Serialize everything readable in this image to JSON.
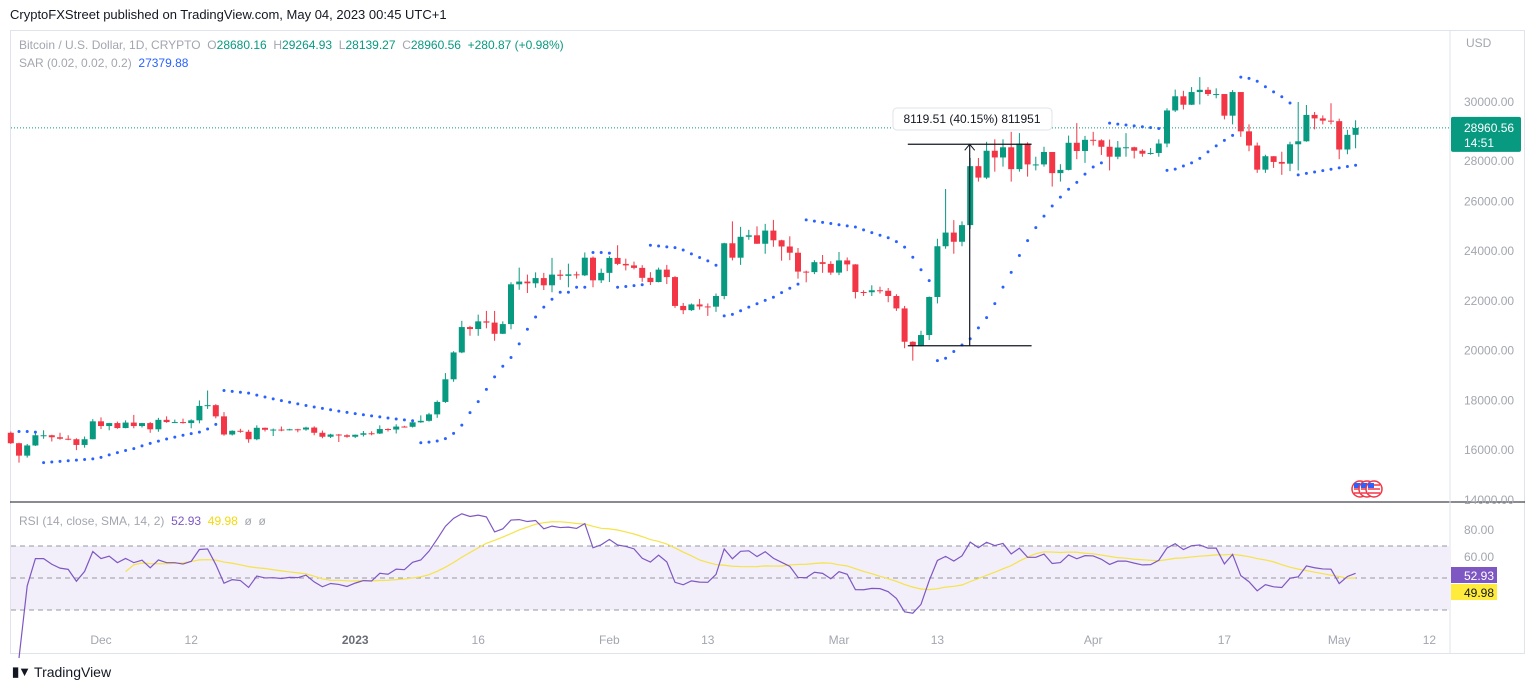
{
  "publisher_line": "CryptoFXStreet published on TradingView.com, May 04, 2023 00:45 UTC+1",
  "legend": {
    "symbol": "Bitcoin / U.S. Dollar, 1D, CRYPTO",
    "o_label": "O",
    "o": "28680.16",
    "h_label": "H",
    "h": "29264.93",
    "l_label": "L",
    "l": "28139.27",
    "c_label": "C",
    "c": "28960.56",
    "change": "+280.87 (+0.98%)",
    "sar_label": "SAR (0.02, 0.02, 0.2)",
    "sar_value": "27379.88"
  },
  "rsi_legend": {
    "label": "RSI (14, close, SMA, 14, 2)",
    "rsi": "52.93",
    "sma": "49.98",
    "extra1": "ø",
    "extra2": "ø"
  },
  "footer": {
    "brand": "TradingView"
  },
  "colors": {
    "up": "#089981",
    "down": "#f23645",
    "sar": "#2962ff",
    "rsi": "#7e57c2",
    "rsi_sma": "#f5e348",
    "band_fill": "#f2eefa"
  },
  "chart_data": {
    "type": "candlestick",
    "currency_label": "USD",
    "y_ticks": [
      "30000.00",
      "28000.00",
      "26000.00",
      "24000.00",
      "22000.00",
      "20000.00",
      "18000.00",
      "16000.00",
      "14000.00"
    ],
    "y_tick_values": [
      30000,
      28000,
      26000,
      24000,
      22000,
      20000,
      18000,
      16000,
      14000
    ],
    "ylim": [
      14000,
      31000
    ],
    "x_ticks": [
      {
        "date": "2022-12-01",
        "label": "Dec"
      },
      {
        "date": "2022-12-12",
        "label": "12"
      },
      {
        "date": "2023-01-01",
        "label": "2023",
        "bold": true
      },
      {
        "date": "2023-01-16",
        "label": "16"
      },
      {
        "date": "2023-02-01",
        "label": "Feb"
      },
      {
        "date": "2023-02-13",
        "label": "13"
      },
      {
        "date": "2023-03-01",
        "label": "Mar"
      },
      {
        "date": "2023-03-13",
        "label": "13"
      },
      {
        "date": "2023-04-01",
        "label": "Apr"
      },
      {
        "date": "2023-04-17",
        "label": "17"
      },
      {
        "date": "2023-05-01",
        "label": "May"
      },
      {
        "date": "2023-05-12",
        "label": "12"
      }
    ],
    "last_price": {
      "value": 28960.56,
      "label": "28960.56",
      "countdown": "14:51"
    },
    "measure": {
      "from": 20200,
      "to": 28300,
      "start_date": "2023-03-10",
      "end_date": "2023-03-24",
      "label": "8119.51 (40.15%) 811951"
    },
    "rsi": {
      "ylim": [
        20,
        90
      ],
      "ticks": [
        "80.00",
        "60.00"
      ],
      "tick_values": [
        80,
        60
      ],
      "bands": [
        70,
        50,
        30
      ],
      "last_rsi_label": "52.93",
      "last_sma_label": "49.98"
    },
    "candles": [
      [
        "2022-11-20",
        16700,
        16750,
        16250,
        16280
      ],
      [
        "2022-11-21",
        16280,
        16300,
        15500,
        15780
      ],
      [
        "2022-11-22",
        15780,
        16250,
        15700,
        16190
      ],
      [
        "2022-11-23",
        16190,
        16680,
        16170,
        16600
      ],
      [
        "2022-11-24",
        16600,
        16800,
        16460,
        16600
      ],
      [
        "2022-11-25",
        16600,
        16620,
        16350,
        16520
      ],
      [
        "2022-11-26",
        16520,
        16700,
        16420,
        16460
      ],
      [
        "2022-11-27",
        16460,
        16600,
        16400,
        16440
      ],
      [
        "2022-11-28",
        16440,
        16480,
        16000,
        16210
      ],
      [
        "2022-11-29",
        16210,
        16550,
        16100,
        16440
      ],
      [
        "2022-11-30",
        16440,
        17250,
        16430,
        17160
      ],
      [
        "2022-12-01",
        17160,
        17320,
        16850,
        16970
      ],
      [
        "2022-12-02",
        16970,
        17100,
        16800,
        17090
      ],
      [
        "2022-12-03",
        17090,
        17150,
        16860,
        16890
      ],
      [
        "2022-12-04",
        16890,
        17200,
        16880,
        17110
      ],
      [
        "2022-12-05",
        17110,
        17420,
        16880,
        16970
      ],
      [
        "2022-12-06",
        16970,
        17100,
        16910,
        17090
      ],
      [
        "2022-12-07",
        17090,
        17130,
        16700,
        16840
      ],
      [
        "2022-12-08",
        16840,
        17300,
        16740,
        17220
      ],
      [
        "2022-12-09",
        17220,
        17360,
        17100,
        17130
      ],
      [
        "2022-12-10",
        17130,
        17230,
        17090,
        17130
      ],
      [
        "2022-12-11",
        17130,
        17270,
        17070,
        17090
      ],
      [
        "2022-12-12",
        17090,
        17240,
        16880,
        17200
      ],
      [
        "2022-12-13",
        17200,
        18000,
        17080,
        17780
      ],
      [
        "2022-12-14",
        17780,
        18400,
        17660,
        17810
      ],
      [
        "2022-12-15",
        17810,
        17850,
        17280,
        17360
      ],
      [
        "2022-12-16",
        17360,
        17530,
        16580,
        16630
      ],
      [
        "2022-12-17",
        16630,
        16800,
        16590,
        16780
      ],
      [
        "2022-12-18",
        16780,
        16860,
        16700,
        16740
      ],
      [
        "2022-12-19",
        16740,
        16820,
        16300,
        16440
      ],
      [
        "2022-12-20",
        16440,
        17000,
        16400,
        16900
      ],
      [
        "2022-12-21",
        16900,
        16910,
        16750,
        16820
      ],
      [
        "2022-12-22",
        16820,
        16870,
        16570,
        16830
      ],
      [
        "2022-12-23",
        16830,
        16950,
        16760,
        16800
      ],
      [
        "2022-12-24",
        16800,
        16860,
        16790,
        16840
      ],
      [
        "2022-12-25",
        16840,
        16860,
        16720,
        16830
      ],
      [
        "2022-12-26",
        16830,
        16940,
        16780,
        16910
      ],
      [
        "2022-12-27",
        16910,
        16960,
        16600,
        16700
      ],
      [
        "2022-12-28",
        16700,
        16790,
        16480,
        16540
      ],
      [
        "2022-12-29",
        16540,
        16660,
        16490,
        16630
      ],
      [
        "2022-12-30",
        16630,
        16650,
        16330,
        16600
      ],
      [
        "2022-12-31",
        16600,
        16640,
        16500,
        16540
      ],
      [
        "2023-01-01",
        16540,
        16630,
        16490,
        16620
      ],
      [
        "2023-01-02",
        16620,
        16770,
        16550,
        16680
      ],
      [
        "2023-01-03",
        16680,
        16760,
        16600,
        16670
      ],
      [
        "2023-01-04",
        16670,
        17000,
        16650,
        16850
      ],
      [
        "2023-01-05",
        16850,
        16880,
        16750,
        16830
      ],
      [
        "2023-01-06",
        16830,
        17040,
        16670,
        16950
      ],
      [
        "2023-01-07",
        16950,
        16980,
        16910,
        16940
      ],
      [
        "2023-01-08",
        16940,
        17180,
        16910,
        17120
      ],
      [
        "2023-01-09",
        17120,
        17400,
        17100,
        17180
      ],
      [
        "2023-01-10",
        17180,
        17500,
        17150,
        17440
      ],
      [
        "2023-01-11",
        17440,
        18000,
        17300,
        17940
      ],
      [
        "2023-01-12",
        17940,
        19100,
        17900,
        18850
      ],
      [
        "2023-01-13",
        18850,
        19980,
        18750,
        19930
      ],
      [
        "2023-01-14",
        19930,
        21200,
        19900,
        20950
      ],
      [
        "2023-01-15",
        20950,
        21000,
        20600,
        20870
      ],
      [
        "2023-01-16",
        20870,
        21450,
        20600,
        21180
      ],
      [
        "2023-01-17",
        21180,
        21600,
        20900,
        21130
      ],
      [
        "2023-01-18",
        21130,
        21600,
        20400,
        20680
      ],
      [
        "2023-01-19",
        20680,
        21180,
        20670,
        21070
      ],
      [
        "2023-01-20",
        21070,
        22750,
        20860,
        22670
      ],
      [
        "2023-01-21",
        22670,
        23340,
        22450,
        22780
      ],
      [
        "2023-01-22",
        22780,
        23060,
        22320,
        22710
      ],
      [
        "2023-01-23",
        22710,
        23150,
        22530,
        22920
      ],
      [
        "2023-01-24",
        22920,
        23130,
        22440,
        22630
      ],
      [
        "2023-01-25",
        22630,
        23730,
        22350,
        23060
      ],
      [
        "2023-01-26",
        23060,
        23250,
        22850,
        23010
      ],
      [
        "2023-01-27",
        23010,
        23500,
        22550,
        23070
      ],
      [
        "2023-01-28",
        23070,
        23180,
        22900,
        23030
      ],
      [
        "2023-01-29",
        23030,
        23950,
        23000,
        23740
      ],
      [
        "2023-01-30",
        23740,
        23790,
        22550,
        22830
      ],
      [
        "2023-01-31",
        22830,
        23300,
        22720,
        23130
      ],
      [
        "2023-02-01",
        23130,
        23800,
        22760,
        23730
      ],
      [
        "2023-02-02",
        23730,
        24240,
        23440,
        23490
      ],
      [
        "2023-02-03",
        23490,
        23700,
        23230,
        23430
      ],
      [
        "2023-02-04",
        23430,
        23580,
        23270,
        23330
      ],
      [
        "2023-02-05",
        23330,
        23440,
        22770,
        22930
      ],
      [
        "2023-02-06",
        22930,
        23160,
        22640,
        22760
      ],
      [
        "2023-02-07",
        22760,
        23340,
        22750,
        23260
      ],
      [
        "2023-02-08",
        23260,
        23450,
        22680,
        22960
      ],
      [
        "2023-02-09",
        22960,
        23000,
        21720,
        21800
      ],
      [
        "2023-02-10",
        21800,
        21920,
        21470,
        21630
      ],
      [
        "2023-02-11",
        21630,
        21900,
        21600,
        21860
      ],
      [
        "2023-02-12",
        21860,
        22080,
        21650,
        21780
      ],
      [
        "2023-02-13",
        21780,
        21900,
        21400,
        21770
      ],
      [
        "2023-02-14",
        21770,
        22300,
        21560,
        22200
      ],
      [
        "2023-02-15",
        22200,
        24340,
        22070,
        24320
      ],
      [
        "2023-02-16",
        24320,
        25200,
        23630,
        23740
      ],
      [
        "2023-02-17",
        23740,
        24980,
        23450,
        24580
      ],
      [
        "2023-02-18",
        24580,
        24860,
        24460,
        24640
      ],
      [
        "2023-02-19",
        24640,
        25000,
        24300,
        24300
      ],
      [
        "2023-02-20",
        24300,
        25100,
        23900,
        24830
      ],
      [
        "2023-02-21",
        24830,
        25260,
        24180,
        24440
      ],
      [
        "2023-02-22",
        24440,
        24460,
        23620,
        24190
      ],
      [
        "2023-02-23",
        24190,
        24600,
        23640,
        23940
      ],
      [
        "2023-02-24",
        23940,
        24130,
        22900,
        23180
      ],
      [
        "2023-02-25",
        23180,
        23220,
        22750,
        23160
      ],
      [
        "2023-02-26",
        23160,
        23640,
        23080,
        23560
      ],
      [
        "2023-02-27",
        23560,
        23850,
        23130,
        23490
      ],
      [
        "2023-02-28",
        23490,
        23600,
        23050,
        23140
      ],
      [
        "2023-03-01",
        23140,
        23970,
        23040,
        23630
      ],
      [
        "2023-03-02",
        23630,
        23750,
        23200,
        23470
      ],
      [
        "2023-03-03",
        23470,
        23480,
        22100,
        22360
      ],
      [
        "2023-03-04",
        22360,
        22430,
        22200,
        22350
      ],
      [
        "2023-03-05",
        22350,
        22630,
        22200,
        22430
      ],
      [
        "2023-03-06",
        22430,
        22570,
        22300,
        22410
      ],
      [
        "2023-03-07",
        22410,
        22520,
        21950,
        22200
      ],
      [
        "2023-03-08",
        22200,
        22270,
        21600,
        21700
      ],
      [
        "2023-03-09",
        21700,
        21800,
        20100,
        20360
      ],
      [
        "2023-03-10",
        20360,
        20380,
        19600,
        20190
      ],
      [
        "2023-03-11",
        20190,
        20800,
        20180,
        20630
      ],
      [
        "2023-03-12",
        20630,
        22180,
        20430,
        22160
      ],
      [
        "2023-03-13",
        22160,
        24500,
        21900,
        24200
      ],
      [
        "2023-03-14",
        24200,
        26500,
        24100,
        24750
      ],
      [
        "2023-03-15",
        24750,
        25250,
        23900,
        24380
      ],
      [
        "2023-03-16",
        24380,
        25200,
        24200,
        25050
      ],
      [
        "2023-03-17",
        25050,
        27750,
        24900,
        27420
      ],
      [
        "2023-03-18",
        27420,
        27750,
        26800,
        26960
      ],
      [
        "2023-03-19",
        26960,
        28400,
        26900,
        28040
      ],
      [
        "2023-03-20",
        28040,
        28500,
        27200,
        27770
      ],
      [
        "2023-03-21",
        27770,
        28500,
        27400,
        28180
      ],
      [
        "2023-03-22",
        28180,
        28800,
        26800,
        27300
      ],
      [
        "2023-03-23",
        27300,
        28750,
        27200,
        28330
      ],
      [
        "2023-03-24",
        28330,
        28380,
        27000,
        27490
      ],
      [
        "2023-03-25",
        27490,
        27800,
        27250,
        27490
      ],
      [
        "2023-03-26",
        27490,
        28200,
        27400,
        27990
      ],
      [
        "2023-03-27",
        27990,
        27990,
        26600,
        27140
      ],
      [
        "2023-03-28",
        27140,
        27500,
        26800,
        27270
      ],
      [
        "2023-03-29",
        27270,
        28650,
        27250,
        28360
      ],
      [
        "2023-03-30",
        28360,
        29150,
        27700,
        28030
      ],
      [
        "2023-03-31",
        28030,
        28640,
        27550,
        28480
      ],
      [
        "2023-04-01",
        28480,
        28800,
        28250,
        28460
      ],
      [
        "2023-04-02",
        28460,
        28500,
        27870,
        28200
      ],
      [
        "2023-04-03",
        28200,
        28490,
        27250,
        27800
      ],
      [
        "2023-04-04",
        27800,
        28430,
        27700,
        28170
      ],
      [
        "2023-04-05",
        28170,
        28750,
        27800,
        28180
      ],
      [
        "2023-04-06",
        28180,
        28200,
        27730,
        28040
      ],
      [
        "2023-04-07",
        28040,
        28100,
        27800,
        27920
      ],
      [
        "2023-04-08",
        27920,
        28150,
        27880,
        27950
      ],
      [
        "2023-04-09",
        27950,
        28500,
        27800,
        28330
      ],
      [
        "2023-04-10",
        28330,
        29750,
        28180,
        29660
      ],
      [
        "2023-04-11",
        29660,
        30500,
        29600,
        30230
      ],
      [
        "2023-04-12",
        30230,
        30450,
        29700,
        29890
      ],
      [
        "2023-04-13",
        29890,
        30600,
        29880,
        30400
      ],
      [
        "2023-04-14",
        30400,
        31000,
        29900,
        30490
      ],
      [
        "2023-04-15",
        30490,
        30600,
        30240,
        30320
      ],
      [
        "2023-04-16",
        30320,
        30550,
        30150,
        30320
      ],
      [
        "2023-04-17",
        30320,
        30320,
        29300,
        29450
      ],
      [
        "2023-04-18",
        29450,
        30480,
        29100,
        30400
      ],
      [
        "2023-04-19",
        30400,
        30400,
        28600,
        28820
      ],
      [
        "2023-04-20",
        28820,
        29100,
        28020,
        28250
      ],
      [
        "2023-04-21",
        28250,
        28370,
        27150,
        27280
      ],
      [
        "2023-04-22",
        27280,
        27880,
        27150,
        27820
      ],
      [
        "2023-04-23",
        27820,
        27820,
        27350,
        27590
      ],
      [
        "2023-04-24",
        27590,
        28000,
        27070,
        27520
      ],
      [
        "2023-04-25",
        27520,
        28400,
        27220,
        28300
      ],
      [
        "2023-04-26",
        28300,
        30000,
        27250,
        28420
      ],
      [
        "2023-04-27",
        28420,
        29880,
        28400,
        29480
      ],
      [
        "2023-04-28",
        29480,
        29600,
        28900,
        29340
      ],
      [
        "2023-04-29",
        29340,
        29460,
        29100,
        29250
      ],
      [
        "2023-04-30",
        29250,
        29950,
        29100,
        29230
      ],
      [
        "2023-05-01",
        29230,
        29330,
        27700,
        28090
      ],
      [
        "2023-05-02",
        28090,
        28880,
        27900,
        28680
      ],
      [
        "2023-05-03",
        28680.16,
        29264.93,
        28139.27,
        28960.56
      ]
    ]
  }
}
